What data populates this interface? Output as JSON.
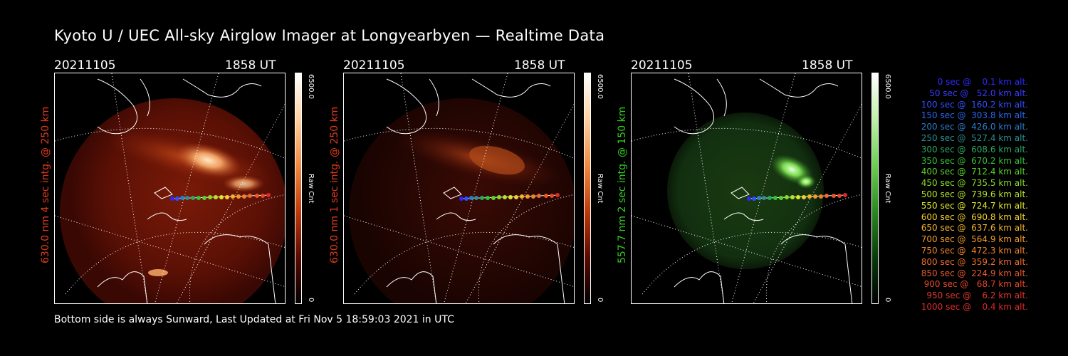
{
  "title": "Kyoto U / UEC All-sky Airglow Imager at Longyearbyen — Realtime Data",
  "footer": "Bottom side is always Sunward, Last Updated at Fri Nov  5 18:59:03 2021 in UTC",
  "colors": {
    "red_label": "#e03a1a",
    "green_label": "#33cc22"
  },
  "panels": [
    {
      "date": "20211105",
      "time": "1858 UT",
      "ylabel": "630.0 nm 4 sec intg. @ 250 km",
      "cbar_max": "6500.0",
      "cbar_unit": "Raw Cnt",
      "cbar_min": "0",
      "palette": "red"
    },
    {
      "date": "20211105",
      "time": "1858 UT",
      "ylabel": "630.0 nm 1 sec intg. @ 250 km",
      "cbar_max": "6500.0",
      "cbar_unit": "Raw Cnt",
      "cbar_min": "0",
      "palette": "red"
    },
    {
      "date": "20211105",
      "time": "1858 UT",
      "ylabel": "557.7 nm 2 sec intg. @ 150 km",
      "cbar_max": "6500.0",
      "cbar_unit": "Raw Cnt",
      "cbar_min": "0",
      "palette": "green"
    }
  ],
  "legend": [
    {
      "text": "0 sec @    0.1 km alt.",
      "color": "#2a2aff"
    },
    {
      "text": "50 sec @   52.0 km alt.",
      "color": "#3a3aff"
    },
    {
      "text": "100 sec @  160.2 km alt.",
      "color": "#3050ff"
    },
    {
      "text": "150 sec @  303.8 km alt.",
      "color": "#2a66ee"
    },
    {
      "text": "200 sec @  426.0 km alt.",
      "color": "#2a7ccc"
    },
    {
      "text": "250 sec @  527.4 km alt.",
      "color": "#2a9090"
    },
    {
      "text": "300 sec @  608.6 km alt.",
      "color": "#2aa860"
    },
    {
      "text": "350 sec @  670.2 km alt.",
      "color": "#36c236"
    },
    {
      "text": "400 sec @  712.4 km alt.",
      "color": "#5ad22a"
    },
    {
      "text": "450 sec @  735.5 km alt.",
      "color": "#86dc2a"
    },
    {
      "text": "500 sec @  739.6 km alt.",
      "color": "#b6e42a"
    },
    {
      "text": "550 sec @  724.7 km alt.",
      "color": "#e0e62a"
    },
    {
      "text": "600 sec @  690.8 km alt.",
      "color": "#f2d02a"
    },
    {
      "text": "650 sec @  637.6 km alt.",
      "color": "#f4b42a"
    },
    {
      "text": "700 sec @  564.9 km alt.",
      "color": "#f49a2a"
    },
    {
      "text": "750 sec @  472.3 km alt.",
      "color": "#f0822a"
    },
    {
      "text": "800 sec @  359.2 km alt.",
      "color": "#ec6c2a"
    },
    {
      "text": "850 sec @  224.9 km alt.",
      "color": "#e8582a"
    },
    {
      "text": "900 sec @   68.7 km alt.",
      "color": "#e4462a"
    },
    {
      "text": "950 sec @    6.2 km alt.",
      "color": "#e0362a"
    },
    {
      "text": "1000 sec @    0.4 km alt.",
      "color": "#dc2a2a"
    }
  ]
}
